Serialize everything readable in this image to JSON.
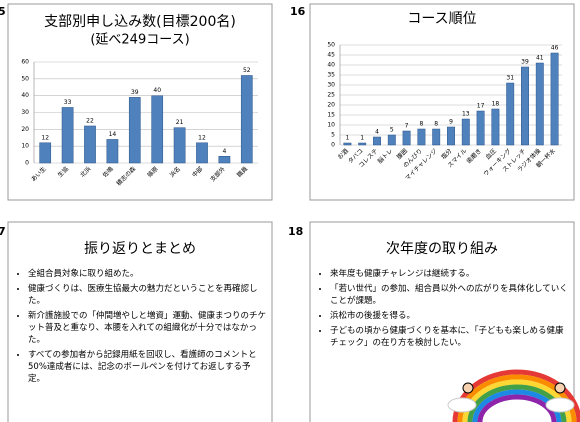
{
  "slides": [
    {
      "number": "5"
    },
    {
      "number": "16"
    },
    {
      "number": "7",
      "title": "振り返りとまとめ",
      "bullets": [
        "全組合員対象に取り組めた。",
        "健康づくりは、医療生協最大の魅力だということを再確認した。",
        "新介護施設での「仲間増やしと増資」運動、健康まつりのチケット普及と重なり、本腰を入れての組織化が十分ではなかった。",
        "すべての参加者から記録用紙を回収し、看護師のコメントと50%達成者には、記念のボールペンを付けてお返しする予定。"
      ]
    },
    {
      "number": "18",
      "title": "次年度の取り組み",
      "bullets": [
        "来年度も健康チャレンジは継続する。",
        "「若い世代」の参加、組合員以外への広がりを具体化していくことが課題。",
        "浜松市の後援を得る。",
        "子どもの頃から健康づくりを基本に、「子どもも楽しめる健康チェック」の在り方を検討したい。"
      ]
    }
  ],
  "chart_data": [
    {
      "type": "bar",
      "title": "支部別申し込み数(目標200名)",
      "subtitle": "(延べ249コース)",
      "categories": [
        "あい生",
        "生協",
        "北浜",
        "佐鳴",
        "積志の森",
        "篠原",
        "浜名",
        "中部",
        "支部外",
        "職員"
      ],
      "values": [
        12,
        33,
        22,
        14,
        39,
        40,
        21,
        12,
        4,
        52
      ],
      "color": "#4f81bd",
      "ylim": [
        0,
        60
      ],
      "yticks": [
        0,
        10,
        20,
        30,
        40,
        50,
        60
      ],
      "grid": true
    },
    {
      "type": "bar",
      "title": "コース順位",
      "categories": [
        "お酒",
        "タバコ",
        "コレステ",
        "脳トレ",
        "腹囲",
        "のんびり",
        "マイチャレンジ",
        "塩分",
        "スマイル",
        "歯磨き",
        "血圧",
        "ウォーキング",
        "ストレッチ",
        "ラジオ体操",
        "朝一杯水"
      ],
      "values": [
        1,
        1,
        4,
        5,
        7,
        8,
        8,
        9,
        13,
        17,
        18,
        31,
        39,
        41,
        46
      ],
      "color": "#4f81bd",
      "ylim": [
        0,
        50
      ],
      "yticks": [
        0,
        5,
        10,
        15,
        20,
        25,
        30,
        35,
        40,
        45,
        50
      ],
      "grid": true
    }
  ]
}
